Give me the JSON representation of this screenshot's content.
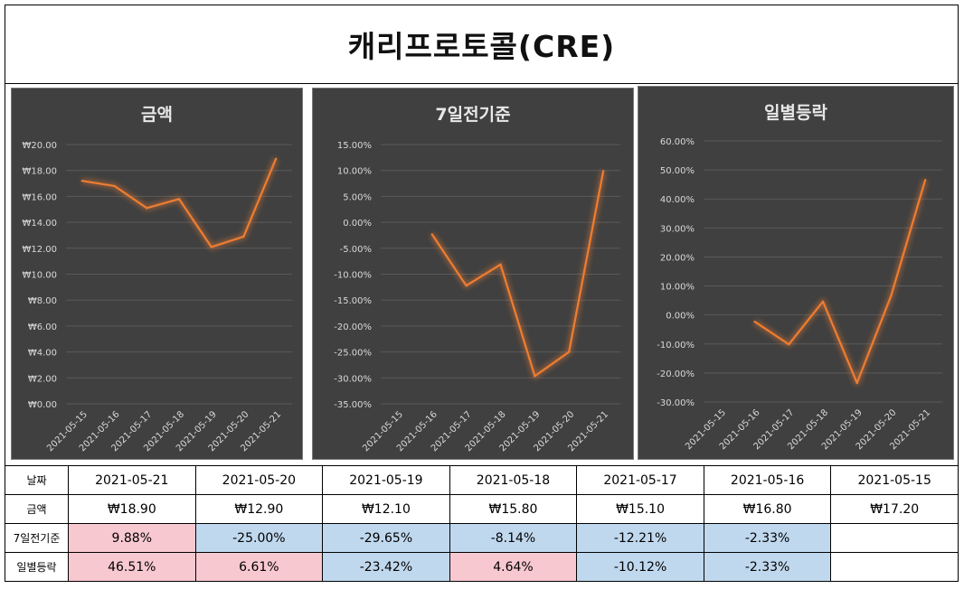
{
  "title": "캐리프로토콜(CRE)",
  "colors": {
    "panel_bg": "#404040",
    "line": "#ed7d31",
    "grid": "#5a5a5a",
    "axis_text": "#d9d9d9",
    "pos_bg": "#f8c8d0",
    "neg_bg": "#c0d8ee"
  },
  "chart_data": [
    {
      "type": "line",
      "title": "금액",
      "categories": [
        "2021-05-15",
        "2021-05-16",
        "2021-05-17",
        "2021-05-18",
        "2021-05-19",
        "2021-05-20",
        "2021-05-21"
      ],
      "values": [
        17.2,
        16.8,
        15.1,
        15.8,
        12.1,
        12.9,
        18.9
      ],
      "ylim": [
        0,
        20
      ],
      "yticks": [
        "₩20.00",
        "₩18.00",
        "₩16.00",
        "₩14.00",
        "₩12.00",
        "₩10.00",
        "₩8.00",
        "₩6.00",
        "₩4.00",
        "₩2.00",
        "₩0.00"
      ],
      "ytick_values": [
        20,
        18,
        16,
        14,
        12,
        10,
        8,
        6,
        4,
        2,
        0
      ]
    },
    {
      "type": "line",
      "title": "7일전기준",
      "categories": [
        "2021-05-15",
        "2021-05-16",
        "2021-05-17",
        "2021-05-18",
        "2021-05-19",
        "2021-05-20",
        "2021-05-21"
      ],
      "values": [
        null,
        -2.33,
        -12.21,
        -8.14,
        -29.65,
        -25.0,
        9.88
      ],
      "ylim": [
        -35,
        15
      ],
      "yticks": [
        "15.00%",
        "10.00%",
        "5.00%",
        "0.00%",
        "-5.00%",
        "-10.00%",
        "-15.00%",
        "-20.00%",
        "-25.00%",
        "-30.00%",
        "-35.00%"
      ],
      "ytick_values": [
        15,
        10,
        5,
        0,
        -5,
        -10,
        -15,
        -20,
        -25,
        -30,
        -35
      ]
    },
    {
      "type": "line",
      "title": "일별등락",
      "categories": [
        "2021-05-15",
        "2021-05-16",
        "2021-05-17",
        "2021-05-18",
        "2021-05-19",
        "2021-05-20",
        "2021-05-21"
      ],
      "values": [
        null,
        -2.33,
        -10.12,
        4.64,
        -23.42,
        6.61,
        46.51
      ],
      "ylim": [
        -30,
        60
      ],
      "yticks": [
        "60.00%",
        "50.00%",
        "40.00%",
        "30.00%",
        "20.00%",
        "10.00%",
        "0.00%",
        "-10.00%",
        "-20.00%",
        "-30.00%"
      ],
      "ytick_values": [
        60,
        50,
        40,
        30,
        20,
        10,
        0,
        -10,
        -20,
        -30
      ]
    }
  ],
  "table": {
    "row_labels": {
      "date": "날짜",
      "amount": "금액",
      "week": "7일전기준",
      "daily": "일별등락"
    },
    "dates": [
      "2021-05-21",
      "2021-05-20",
      "2021-05-19",
      "2021-05-18",
      "2021-05-17",
      "2021-05-16",
      "2021-05-15"
    ],
    "amounts": [
      "₩18.90",
      "₩12.90",
      "₩12.10",
      "₩15.80",
      "₩15.10",
      "₩16.80",
      "₩17.20"
    ],
    "week": [
      "9.88%",
      "-25.00%",
      "-29.65%",
      "-8.14%",
      "-12.21%",
      "-2.33%",
      ""
    ],
    "week_sign": [
      "pos",
      "neg",
      "neg",
      "neg",
      "neg",
      "neg",
      "empty"
    ],
    "daily": [
      "46.51%",
      "6.61%",
      "-23.42%",
      "4.64%",
      "-10.12%",
      "-2.33%",
      ""
    ],
    "daily_sign": [
      "pos",
      "pos",
      "neg",
      "pos",
      "neg",
      "neg",
      "empty"
    ]
  }
}
